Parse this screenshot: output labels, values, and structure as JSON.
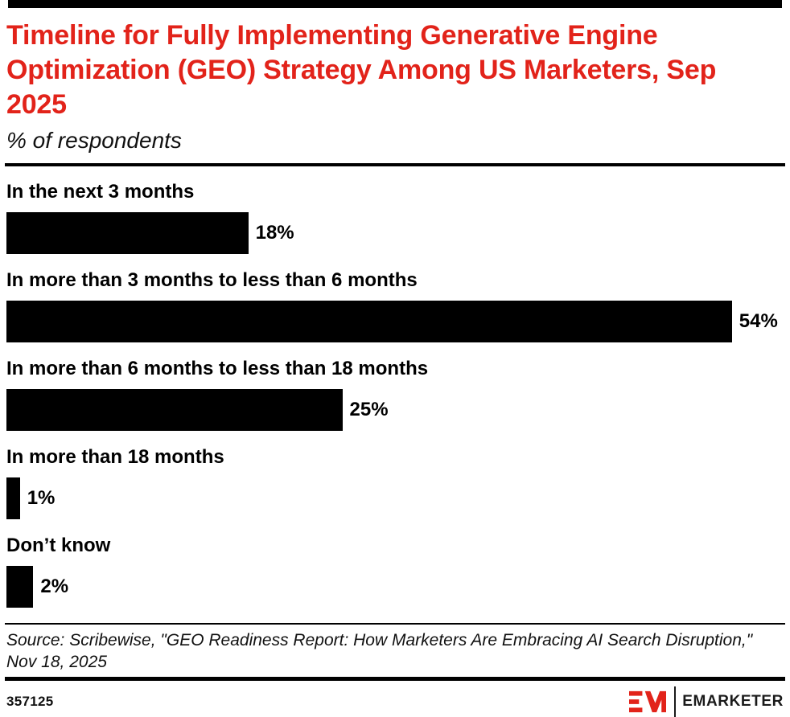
{
  "header": {
    "title": "Timeline for Fully Implementing Generative Engine Optimization (GEO) Strategy Among US Marketers, Sep 2025",
    "subtitle": "% of respondents"
  },
  "chart_data": {
    "type": "bar",
    "orientation": "horizontal",
    "title": "Timeline for Fully Implementing Generative Engine Optimization (GEO) Strategy Among US Marketers, Sep 2025",
    "subtitle": "% of respondents",
    "categories": [
      "In the next 3 months",
      "In more than 3 months to less than 6 months",
      "In more than 6 months to less than 18 months",
      "In more than 18 months",
      "Don’t know"
    ],
    "values": [
      18,
      54,
      25,
      1,
      2
    ],
    "value_labels": [
      "18%",
      "54%",
      "25%",
      "1%",
      "2%"
    ],
    "value_unit": "%",
    "xlabel": "",
    "ylabel": "",
    "xlim": [
      0,
      58
    ],
    "grid": false,
    "legend": null,
    "bar_color": "#000000",
    "data_labels_position": "right-of-bar"
  },
  "source": {
    "text": "Source: Scribewise, \"GEO Readiness Report: How Marketers Are Embracing AI Search Disruption,\" Nov 18, 2025"
  },
  "footer": {
    "chart_id": "357125",
    "brand": "EMARKETER"
  },
  "colors": {
    "accent_red": "#e2231a",
    "bar_black": "#000000",
    "text_black": "#111111"
  }
}
